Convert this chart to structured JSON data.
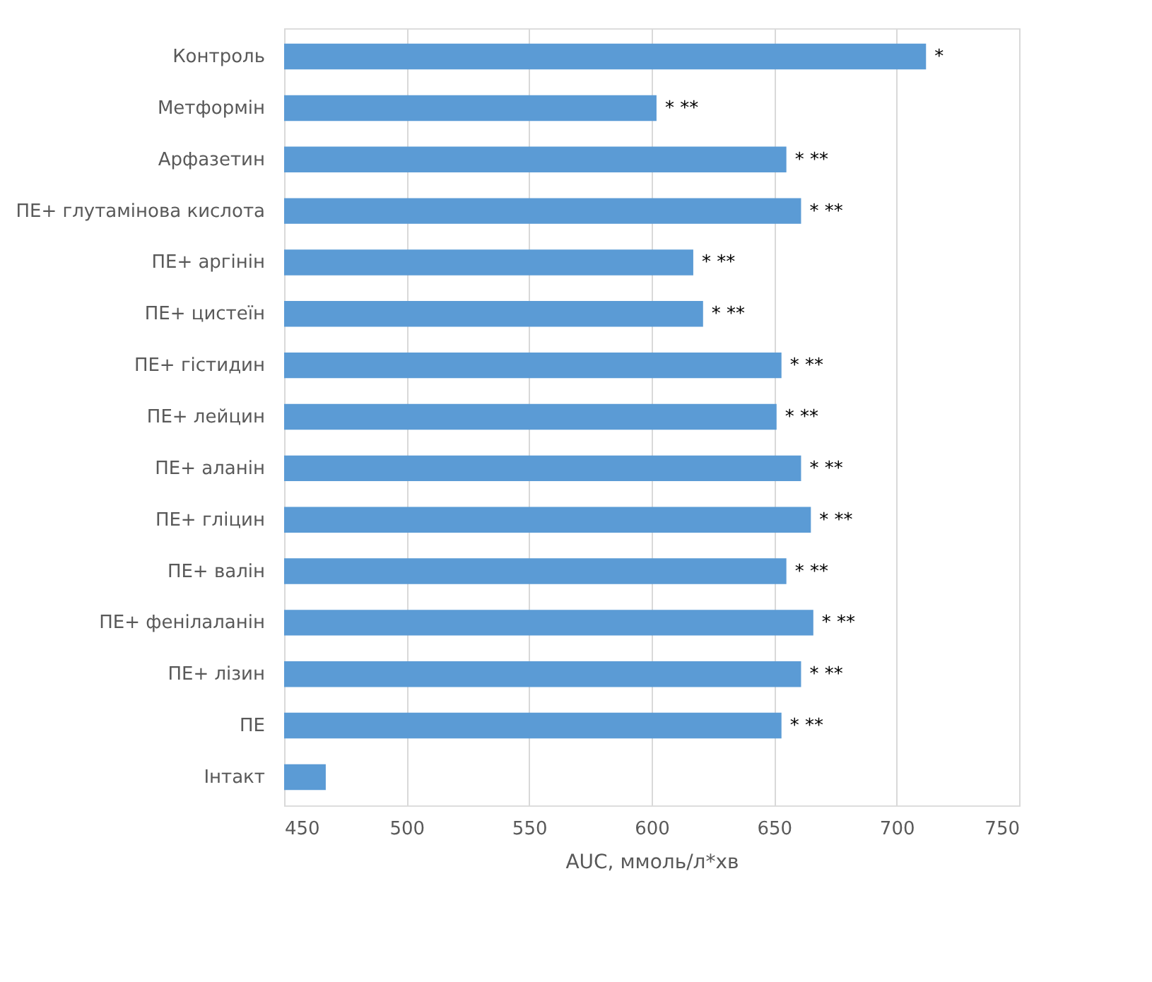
{
  "chart_data": {
    "type": "bar",
    "orientation": "horizontal",
    "xlabel": "AUC, ммоль/л*хв",
    "categories": [
      "Контроль",
      "Метформін",
      "Арфазетин",
      "ПЕ+ глутамінова кислота",
      "ПЕ+ аргінін",
      "ПЕ+ цистеїн",
      "ПЕ+ гістидин",
      "ПЕ+ лейцин",
      "ПЕ+ аланін",
      "ПЕ+ гліцин",
      "ПЕ+ валін",
      "ПЕ+ фенілаланін",
      "ПЕ+ лізин",
      "ПЕ",
      "Інтакт"
    ],
    "values": [
      712,
      602,
      655,
      661,
      617,
      621,
      653,
      651,
      661,
      665,
      655,
      666,
      661,
      653,
      467
    ],
    "color": "#5b9bd5",
    "xlim": [
      450,
      750
    ],
    "xticks": [
      450,
      500,
      550,
      600,
      650,
      700,
      750
    ],
    "grid": "x",
    "annotations": [
      {
        "text": "*",
        "x": 712,
        "y": "Контроль"
      },
      {
        "text": "* **",
        "x": 602,
        "y": "Метформін"
      },
      {
        "text": "* **",
        "x": 655,
        "y": "Арфазетин"
      },
      {
        "text": "* **",
        "x": 661,
        "y": "ПЕ+ глутамінова кислота"
      },
      {
        "text": "* **",
        "x": 617,
        "y": "ПЕ+ аргінін"
      },
      {
        "text": "* **",
        "x": 621,
        "y": "ПЕ+ цистеїн"
      },
      {
        "text": "* **",
        "x": 653,
        "y": "ПЕ+ гістидин"
      },
      {
        "text": "* **",
        "x": 651,
        "y": "ПЕ+ лейцин"
      },
      {
        "text": "* **",
        "x": 661,
        "y": "ПЕ+ аланін"
      },
      {
        "text": "* **",
        "x": 665,
        "y": "ПЕ+ гліцин"
      },
      {
        "text": "* **",
        "x": 655,
        "y": "ПЕ+ валін"
      },
      {
        "text": "* **",
        "x": 666,
        "y": "ПЕ+ фенілаланін"
      },
      {
        "text": "* **",
        "x": 661,
        "y": "ПЕ+ лізин"
      },
      {
        "text": "* **",
        "x": 653,
        "y": "ПЕ"
      }
    ]
  }
}
